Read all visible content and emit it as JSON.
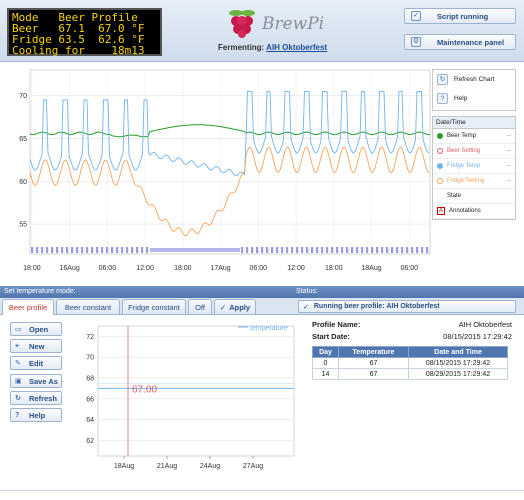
{
  "lcd": {
    "lines": [
      "Mode   Beer Profile",
      "Beer   67.1  67.0 °F",
      "Fridge 63.5  62.6 °F",
      "Cooling for    18m13"
    ]
  },
  "logo": {
    "text": "BrewPi"
  },
  "fermenting": {
    "label": "Fermenting:",
    "name": "AIH Oktoberfest"
  },
  "header_buttons": {
    "script": "Script running",
    "maintenance": "Maintenance panel"
  },
  "chart_controls": {
    "refresh": "Refresh Chart",
    "help": "Help"
  },
  "legend": {
    "header": "Date/Time",
    "items": [
      {
        "label": "Beer Temp",
        "color": "#2a9d2a",
        "value": "--"
      },
      {
        "label": "Beer Setting",
        "color": "#e06060",
        "value": "--"
      },
      {
        "label": "Fridge Temp",
        "color": "#6fb4ef",
        "value": "--"
      },
      {
        "label": "Fridge Setting",
        "color": "#f4a460",
        "value": "--"
      },
      {
        "label": "State",
        "color": "",
        "value": ""
      },
      {
        "label": "Annotations",
        "color": "#cc0000",
        "value": ""
      }
    ]
  },
  "chart_data": [
    {
      "type": "line",
      "title": "",
      "yticks": [
        55,
        60,
        65,
        70
      ],
      "ylim": [
        51.5,
        73
      ],
      "xtick_labels": [
        "18:00",
        "16Aug",
        "06:00",
        "12:00",
        "18:00",
        "17Aug",
        "06:00",
        "12:00",
        "18:00",
        "18Aug",
        "06:00"
      ],
      "series": [
        {
          "name": "Beer Temp",
          "color": "#2a9d2a"
        },
        {
          "name": "Fridge Temp",
          "color": "#6fb4ef"
        },
        {
          "name": "Fridge Setting",
          "color": "#f4a460"
        }
      ]
    },
    {
      "type": "line",
      "legend": "temperature",
      "yticks": [
        62,
        64,
        66,
        68,
        70,
        72
      ],
      "ylim": [
        60.5,
        73
      ],
      "xtick_labels": [
        "18Aug",
        "21Aug",
        "24Aug",
        "27Aug"
      ],
      "value_label": "67.00",
      "series": [
        {
          "name": "temperature",
          "values": [
            67,
            67
          ]
        }
      ]
    }
  ],
  "mode_panel": {
    "title": "Set temperature mode:",
    "tabs": [
      "Beer profile",
      "Beer constant",
      "Fridge constant",
      "Off"
    ],
    "apply": "Apply",
    "buttons": [
      "Open",
      "New",
      "Edit",
      "Save As",
      "Refresh",
      "Help"
    ]
  },
  "status_panel": {
    "title": "Status:",
    "status": "Running beer profile: AIH Oktoberfest"
  },
  "profile": {
    "name_label": "Profile Name:",
    "name": "AIH Oktoberfest",
    "start_label": "Start Date:",
    "start": "08/15/2015 17:29:42",
    "columns": [
      "Day",
      "Temperature",
      "Date and Time"
    ],
    "rows": [
      [
        "0",
        "67",
        "08/15/2015 17:29:42"
      ],
      [
        "14",
        "67",
        "08/29/2015 17:29:42"
      ]
    ]
  }
}
